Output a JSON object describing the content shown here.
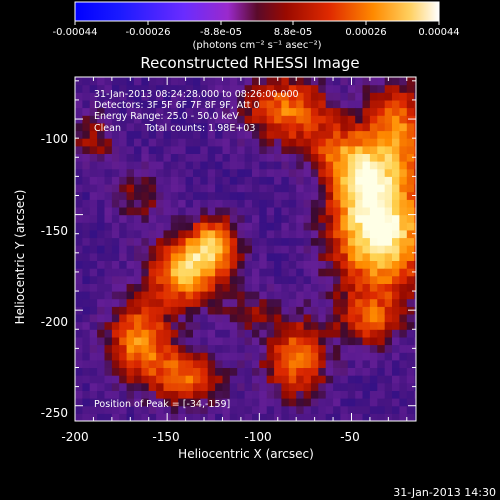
{
  "chart_data": {
    "type": "heatmap",
    "title": "Reconstructed RHESSI Image",
    "xlabel": "Heliocentric X (arcsec)",
    "ylabel": "Heliocentric Y (arcsec)",
    "xlim": [
      -200,
      -15
    ],
    "ylim": [
      -258,
      -78
    ],
    "x_ticks": [
      -200,
      -150,
      -100,
      -50
    ],
    "y_ticks": [
      -100,
      -150,
      -200,
      -250
    ],
    "colorbar": {
      "ticks": [
        "-0.00044",
        "-0.00026",
        "-8.8e-05",
        "8.8e-05",
        "0.00026",
        "0.00044"
      ],
      "range": [
        -0.00044,
        0.00044
      ],
      "unit_label": "(photons cm⁻² s⁻¹ asec⁻²)"
    },
    "annotations": {
      "time_range": "31-Jan-2013 08:24:28.000 to 08:26:00.000",
      "detectors": "Detectors: 3F 5F 6F 7F 8F 9F, Att 0",
      "energy": "Energy Range: 25.0 - 50.0 keV",
      "method": "Clean",
      "counts": "Total counts: 1.98E+03",
      "peak": "Position of Peak = [-34,-159]"
    },
    "peak": [
      -34,
      -159
    ],
    "colors": {
      "background": "#000000",
      "text": "#ffffff"
    }
  },
  "footer": {
    "timestamp": "31-Jan-2013 14:30"
  }
}
